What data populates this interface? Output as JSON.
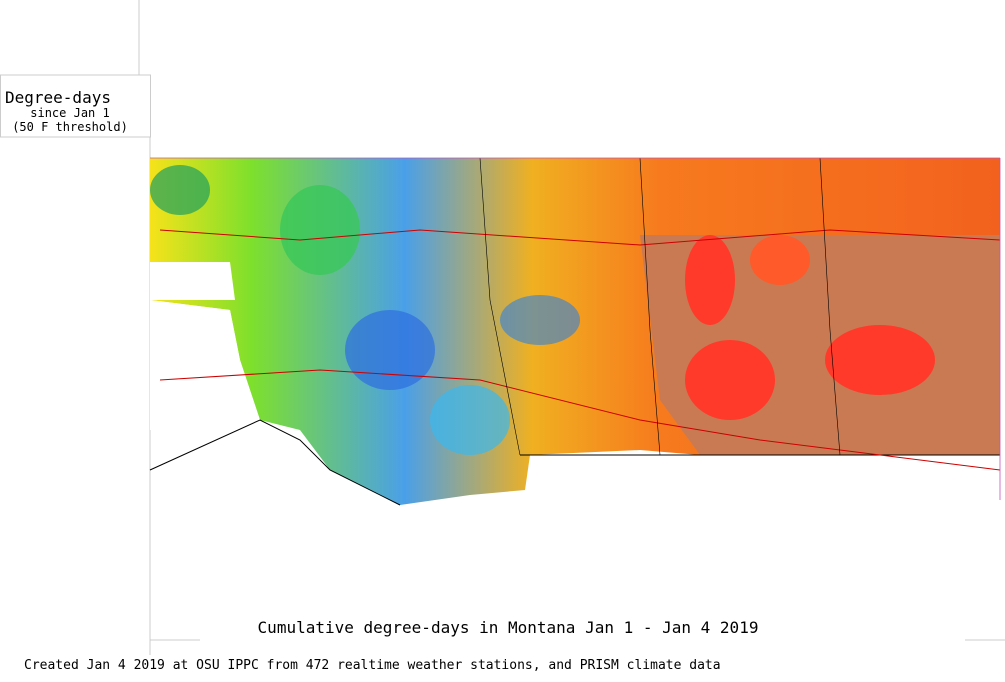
{
  "legend": {
    "title": "Degree-days",
    "subtitle": "since Jan 1",
    "threshold": "(50 F threshold)"
  },
  "map": {
    "title": "Cumulative degree-days in Montana  Jan 1 - Jan 4 2019"
  },
  "footer": {
    "credit": "Created Jan 4 2019 at OSU IPPC from 472 realtime weather stations, and PRISM climate data"
  }
}
